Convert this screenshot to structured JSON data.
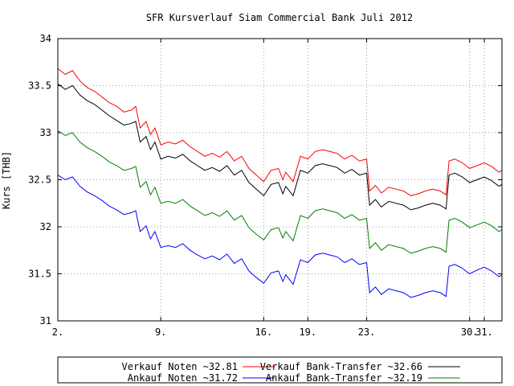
{
  "chart_data": {
    "type": "line",
    "title": "SFR Kursverlauf Siam Commercial Bank Juli 2012",
    "xlabel": "",
    "ylabel": "Kurs [THB]",
    "xlim": [
      2,
      32.2
    ],
    "ylim": [
      31,
      34
    ],
    "x_ticks": [
      2,
      9,
      16,
      19,
      23,
      30,
      31
    ],
    "x_tick_labels": [
      "2.",
      "9.",
      "16.",
      "19.",
      "23.",
      "30.",
      "31."
    ],
    "y_ticks": [
      31,
      31.5,
      32,
      32.5,
      33,
      33.5,
      34
    ],
    "y_tick_labels": [
      "31",
      "31.5",
      "32",
      "32.5",
      "33",
      "33.5",
      "34"
    ],
    "grid": true,
    "legend_position": "bottom",
    "series": [
      {
        "name": "Verkauf Noten ~32.81",
        "color": "#ff0000",
        "points": [
          [
            2.0,
            33.68
          ],
          [
            2.5,
            33.62
          ],
          [
            3.0,
            33.66
          ],
          [
            3.5,
            33.55
          ],
          [
            4.0,
            33.48
          ],
          [
            4.5,
            33.44
          ],
          [
            5.0,
            33.38
          ],
          [
            5.5,
            33.32
          ],
          [
            6.0,
            33.28
          ],
          [
            6.5,
            33.22
          ],
          [
            7.0,
            33.24
          ],
          [
            7.3,
            33.28
          ],
          [
            7.6,
            33.05
          ],
          [
            8.0,
            33.12
          ],
          [
            8.3,
            32.98
          ],
          [
            8.6,
            33.05
          ],
          [
            9.0,
            32.87
          ],
          [
            9.5,
            32.9
          ],
          [
            10.0,
            32.88
          ],
          [
            10.5,
            32.92
          ],
          [
            11.0,
            32.85
          ],
          [
            11.5,
            32.8
          ],
          [
            12.0,
            32.75
          ],
          [
            12.5,
            32.78
          ],
          [
            13.0,
            32.74
          ],
          [
            13.5,
            32.8
          ],
          [
            14.0,
            32.7
          ],
          [
            14.5,
            32.75
          ],
          [
            15.0,
            32.62
          ],
          [
            15.5,
            32.55
          ],
          [
            16.0,
            32.48
          ],
          [
            16.5,
            32.6
          ],
          [
            17.0,
            32.62
          ],
          [
            17.3,
            32.5
          ],
          [
            17.5,
            32.58
          ],
          [
            18.0,
            32.48
          ],
          [
            18.5,
            32.75
          ],
          [
            19.0,
            32.72
          ],
          [
            19.5,
            32.8
          ],
          [
            20.0,
            32.82
          ],
          [
            20.5,
            32.8
          ],
          [
            21.0,
            32.78
          ],
          [
            21.5,
            32.72
          ],
          [
            22.0,
            32.76
          ],
          [
            22.5,
            32.7
          ],
          [
            23.0,
            32.72
          ],
          [
            23.2,
            32.38
          ],
          [
            23.6,
            32.44
          ],
          [
            24.0,
            32.36
          ],
          [
            24.5,
            32.42
          ],
          [
            25.0,
            32.4
          ],
          [
            25.5,
            32.38
          ],
          [
            26.0,
            32.33
          ],
          [
            26.5,
            32.35
          ],
          [
            27.0,
            32.38
          ],
          [
            27.5,
            32.4
          ],
          [
            28.0,
            32.38
          ],
          [
            28.4,
            32.34
          ],
          [
            28.6,
            32.7
          ],
          [
            29.0,
            32.72
          ],
          [
            29.5,
            32.68
          ],
          [
            30.0,
            32.62
          ],
          [
            30.5,
            32.65
          ],
          [
            31.0,
            32.68
          ],
          [
            31.5,
            32.64
          ],
          [
            32.0,
            32.58
          ],
          [
            32.2,
            32.6
          ]
        ]
      },
      {
        "name": "Verkauf Bank-Transfer ~32.66",
        "color": "#000000",
        "points": [
          [
            2.0,
            33.52
          ],
          [
            2.5,
            33.46
          ],
          [
            3.0,
            33.5
          ],
          [
            3.5,
            33.4
          ],
          [
            4.0,
            33.34
          ],
          [
            4.5,
            33.3
          ],
          [
            5.0,
            33.24
          ],
          [
            5.5,
            33.18
          ],
          [
            6.0,
            33.13
          ],
          [
            6.5,
            33.08
          ],
          [
            7.0,
            33.1
          ],
          [
            7.3,
            33.12
          ],
          [
            7.6,
            32.9
          ],
          [
            8.0,
            32.96
          ],
          [
            8.3,
            32.82
          ],
          [
            8.6,
            32.9
          ],
          [
            9.0,
            32.72
          ],
          [
            9.5,
            32.75
          ],
          [
            10.0,
            32.73
          ],
          [
            10.5,
            32.77
          ],
          [
            11.0,
            32.7
          ],
          [
            11.5,
            32.65
          ],
          [
            12.0,
            32.6
          ],
          [
            12.5,
            32.63
          ],
          [
            13.0,
            32.59
          ],
          [
            13.5,
            32.65
          ],
          [
            14.0,
            32.55
          ],
          [
            14.5,
            32.6
          ],
          [
            15.0,
            32.47
          ],
          [
            15.5,
            32.4
          ],
          [
            16.0,
            32.33
          ],
          [
            16.5,
            32.45
          ],
          [
            17.0,
            32.47
          ],
          [
            17.3,
            32.35
          ],
          [
            17.5,
            32.43
          ],
          [
            18.0,
            32.33
          ],
          [
            18.5,
            32.6
          ],
          [
            19.0,
            32.57
          ],
          [
            19.5,
            32.65
          ],
          [
            20.0,
            32.67
          ],
          [
            20.5,
            32.65
          ],
          [
            21.0,
            32.63
          ],
          [
            21.5,
            32.57
          ],
          [
            22.0,
            32.61
          ],
          [
            22.5,
            32.55
          ],
          [
            23.0,
            32.57
          ],
          [
            23.2,
            32.23
          ],
          [
            23.6,
            32.29
          ],
          [
            24.0,
            32.21
          ],
          [
            24.5,
            32.27
          ],
          [
            25.0,
            32.25
          ],
          [
            25.5,
            32.23
          ],
          [
            26.0,
            32.18
          ],
          [
            26.5,
            32.2
          ],
          [
            27.0,
            32.23
          ],
          [
            27.5,
            32.25
          ],
          [
            28.0,
            32.23
          ],
          [
            28.4,
            32.19
          ],
          [
            28.6,
            32.55
          ],
          [
            29.0,
            32.57
          ],
          [
            29.5,
            32.53
          ],
          [
            30.0,
            32.47
          ],
          [
            30.5,
            32.5
          ],
          [
            31.0,
            32.53
          ],
          [
            31.5,
            32.49
          ],
          [
            32.0,
            32.43
          ],
          [
            32.2,
            32.45
          ]
        ]
      },
      {
        "name": "Ankauf Bank-Transfer ~32.19",
        "color": "#008000",
        "points": [
          [
            2.0,
            33.02
          ],
          [
            2.5,
            32.97
          ],
          [
            3.0,
            33.0
          ],
          [
            3.5,
            32.9
          ],
          [
            4.0,
            32.84
          ],
          [
            4.5,
            32.8
          ],
          [
            5.0,
            32.75
          ],
          [
            5.5,
            32.69
          ],
          [
            6.0,
            32.65
          ],
          [
            6.5,
            32.6
          ],
          [
            7.0,
            32.62
          ],
          [
            7.3,
            32.64
          ],
          [
            7.6,
            32.42
          ],
          [
            8.0,
            32.48
          ],
          [
            8.3,
            32.34
          ],
          [
            8.6,
            32.42
          ],
          [
            9.0,
            32.25
          ],
          [
            9.5,
            32.27
          ],
          [
            10.0,
            32.25
          ],
          [
            10.5,
            32.29
          ],
          [
            11.0,
            32.22
          ],
          [
            11.5,
            32.17
          ],
          [
            12.0,
            32.12
          ],
          [
            12.5,
            32.15
          ],
          [
            13.0,
            32.11
          ],
          [
            13.5,
            32.17
          ],
          [
            14.0,
            32.07
          ],
          [
            14.5,
            32.12
          ],
          [
            15.0,
            31.99
          ],
          [
            15.5,
            31.92
          ],
          [
            16.0,
            31.86
          ],
          [
            16.5,
            31.97
          ],
          [
            17.0,
            31.99
          ],
          [
            17.3,
            31.88
          ],
          [
            17.5,
            31.95
          ],
          [
            18.0,
            31.85
          ],
          [
            18.5,
            32.12
          ],
          [
            19.0,
            32.09
          ],
          [
            19.5,
            32.17
          ],
          [
            20.0,
            32.19
          ],
          [
            20.5,
            32.17
          ],
          [
            21.0,
            32.15
          ],
          [
            21.5,
            32.09
          ],
          [
            22.0,
            32.13
          ],
          [
            22.5,
            32.07
          ],
          [
            23.0,
            32.09
          ],
          [
            23.2,
            31.77
          ],
          [
            23.6,
            31.83
          ],
          [
            24.0,
            31.75
          ],
          [
            24.5,
            31.81
          ],
          [
            25.0,
            31.79
          ],
          [
            25.5,
            31.77
          ],
          [
            26.0,
            31.72
          ],
          [
            26.5,
            31.74
          ],
          [
            27.0,
            31.77
          ],
          [
            27.5,
            31.79
          ],
          [
            28.0,
            31.77
          ],
          [
            28.4,
            31.73
          ],
          [
            28.6,
            32.07
          ],
          [
            29.0,
            32.09
          ],
          [
            29.5,
            32.05
          ],
          [
            30.0,
            31.99
          ],
          [
            30.5,
            32.02
          ],
          [
            31.0,
            32.05
          ],
          [
            31.5,
            32.01
          ],
          [
            32.0,
            31.95
          ],
          [
            32.2,
            31.97
          ]
        ]
      },
      {
        "name": "Ankauf Noten ~31.72",
        "color": "#0000ff",
        "points": [
          [
            2.0,
            32.55
          ],
          [
            2.5,
            32.5
          ],
          [
            3.0,
            32.53
          ],
          [
            3.5,
            32.43
          ],
          [
            4.0,
            32.37
          ],
          [
            4.5,
            32.33
          ],
          [
            5.0,
            32.28
          ],
          [
            5.5,
            32.22
          ],
          [
            6.0,
            32.18
          ],
          [
            6.5,
            32.13
          ],
          [
            7.0,
            32.15
          ],
          [
            7.3,
            32.17
          ],
          [
            7.6,
            31.95
          ],
          [
            8.0,
            32.01
          ],
          [
            8.3,
            31.87
          ],
          [
            8.6,
            31.95
          ],
          [
            9.0,
            31.78
          ],
          [
            9.5,
            31.8
          ],
          [
            10.0,
            31.78
          ],
          [
            10.5,
            31.82
          ],
          [
            11.0,
            31.75
          ],
          [
            11.5,
            31.7
          ],
          [
            12.0,
            31.66
          ],
          [
            12.5,
            31.69
          ],
          [
            13.0,
            31.65
          ],
          [
            13.5,
            31.71
          ],
          [
            14.0,
            31.61
          ],
          [
            14.5,
            31.66
          ],
          [
            15.0,
            31.53
          ],
          [
            15.5,
            31.46
          ],
          [
            16.0,
            31.4
          ],
          [
            16.5,
            31.51
          ],
          [
            17.0,
            31.53
          ],
          [
            17.3,
            31.42
          ],
          [
            17.5,
            31.49
          ],
          [
            18.0,
            31.39
          ],
          [
            18.5,
            31.65
          ],
          [
            19.0,
            31.62
          ],
          [
            19.5,
            31.7
          ],
          [
            20.0,
            31.72
          ],
          [
            20.5,
            31.7
          ],
          [
            21.0,
            31.68
          ],
          [
            21.5,
            31.62
          ],
          [
            22.0,
            31.66
          ],
          [
            22.5,
            31.6
          ],
          [
            23.0,
            31.62
          ],
          [
            23.2,
            31.3
          ],
          [
            23.6,
            31.36
          ],
          [
            24.0,
            31.28
          ],
          [
            24.5,
            31.34
          ],
          [
            25.0,
            31.32
          ],
          [
            25.5,
            31.3
          ],
          [
            26.0,
            31.25
          ],
          [
            26.5,
            31.27
          ],
          [
            27.0,
            31.3
          ],
          [
            27.5,
            31.32
          ],
          [
            28.0,
            31.3
          ],
          [
            28.4,
            31.26
          ],
          [
            28.6,
            31.58
          ],
          [
            29.0,
            31.6
          ],
          [
            29.5,
            31.56
          ],
          [
            30.0,
            31.5
          ],
          [
            30.5,
            31.54
          ],
          [
            31.0,
            31.57
          ],
          [
            31.5,
            31.53
          ],
          [
            32.0,
            31.47
          ],
          [
            32.2,
            31.49
          ]
        ]
      }
    ]
  }
}
